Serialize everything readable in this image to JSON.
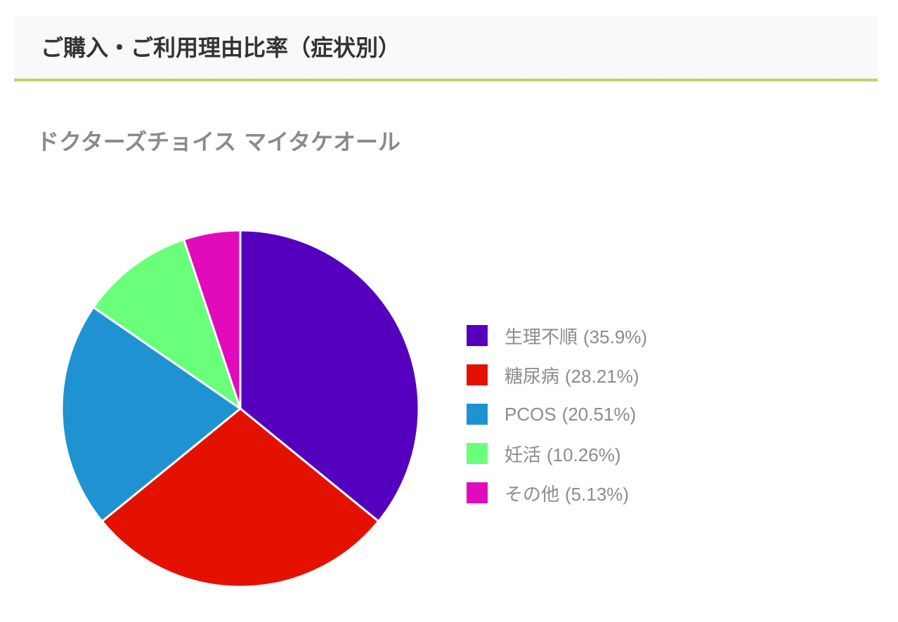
{
  "header": {
    "title": "ご購入・ご利用理由比率（症状別）"
  },
  "product": {
    "name": "ドクターズチョイス マイタケオール"
  },
  "chart_data": {
    "type": "pie",
    "title": "",
    "categories": [
      "生理不順",
      "糖尿病",
      "PCOS",
      "妊活",
      "その他"
    ],
    "values": [
      35.9,
      28.21,
      20.51,
      10.26,
      5.13
    ],
    "percent_labels": [
      "(35.9%)",
      "(28.21%)",
      "(20.51%)",
      "(10.26%)",
      "(5.13%)"
    ],
    "colors": [
      "#5500bf",
      "#e51100",
      "#1f93d1",
      "#6aff7a",
      "#e20bbc"
    ],
    "start_angle": "12 o'clock",
    "direction": "clockwise",
    "slice_border_color": "#ffffff",
    "legend_position": "right"
  }
}
